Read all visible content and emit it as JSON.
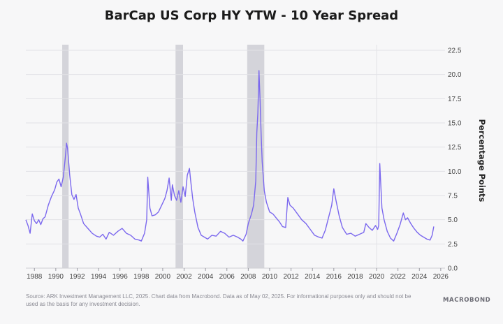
{
  "chart_data": {
    "type": "line",
    "title": "BarCap US Corp HY YTW - 10 Year Spread",
    "ylabel": "Percentage Points",
    "xlim": [
      1987.2,
      2026.4
    ],
    "ylim": [
      0,
      22.5
    ],
    "y_ticks": [
      "0.0",
      "2.5",
      "5.0",
      "7.5",
      "10.0",
      "12.5",
      "15.0",
      "17.5",
      "20.0",
      "22.5"
    ],
    "y_tick_values": [
      0,
      2.5,
      5,
      7.5,
      10,
      12.5,
      15,
      17.5,
      20,
      22.5
    ],
    "x_ticks": [
      "1988",
      "1990",
      "1992",
      "1994",
      "1996",
      "1998",
      "2000",
      "2002",
      "2004",
      "2006",
      "2008",
      "2010",
      "2012",
      "2014",
      "2016",
      "2018",
      "2020",
      "2022",
      "2024",
      "2026"
    ],
    "x_tick_values": [
      1988,
      1990,
      1992,
      1994,
      1996,
      1998,
      2000,
      2002,
      2004,
      2006,
      2008,
      2010,
      2012,
      2014,
      2016,
      2018,
      2020,
      2022,
      2024,
      2026
    ],
    "grid": "horizontal",
    "recession_bands": [
      [
        1990.6,
        1991.2
      ],
      [
        2001.2,
        2001.9
      ],
      [
        2007.9,
        2009.5
      ]
    ],
    "line_color": "#7b68ee",
    "band_color": "#d4d4da",
    "series": [
      {
        "x": [
          1987.2,
          1987.4,
          1987.6,
          1987.8,
          1988.0,
          1988.2,
          1988.4,
          1988.6,
          1988.8,
          1989.0,
          1989.3,
          1989.6,
          1989.9,
          1990.1,
          1990.3,
          1990.5,
          1990.7,
          1990.9,
          1991.0,
          1991.1,
          1991.3,
          1991.5,
          1991.7,
          1991.9,
          1992.1,
          1992.3,
          1992.6,
          1993.0,
          1993.4,
          1993.8,
          1994.1,
          1994.4,
          1994.7,
          1995.0,
          1995.4,
          1995.8,
          1996.2,
          1996.6,
          1997.0,
          1997.4,
          1997.8,
          1998.0,
          1998.3,
          1998.5,
          1998.6,
          1998.8,
          1999.0,
          1999.3,
          1999.6,
          1999.9,
          2000.2,
          2000.4,
          2000.6,
          2000.8,
          2000.9,
          2001.1,
          2001.3,
          2001.5,
          2001.7,
          2001.9,
          2002.1,
          2002.3,
          2002.5,
          2002.6,
          2002.8,
          2003.0,
          2003.3,
          2003.6,
          2003.9,
          2004.2,
          2004.6,
          2005.0,
          2005.4,
          2005.8,
          2006.2,
          2006.6,
          2007.0,
          2007.3,
          2007.5,
          2007.8,
          2008.0,
          2008.3,
          2008.5,
          2008.7,
          2008.8,
          2008.9,
          2009.0,
          2009.1,
          2009.2,
          2009.3,
          2009.5,
          2009.7,
          2010.0,
          2010.3,
          2010.6,
          2010.9,
          2011.2,
          2011.5,
          2011.7,
          2011.9,
          2012.2,
          2012.6,
          2013.0,
          2013.4,
          2013.8,
          2014.2,
          2014.6,
          2014.9,
          2015.2,
          2015.5,
          2015.8,
          2016.0,
          2016.2,
          2016.5,
          2016.8,
          2017.2,
          2017.6,
          2018.0,
          2018.4,
          2018.8,
          2019.0,
          2019.3,
          2019.6,
          2019.9,
          2020.1,
          2020.2,
          2020.3,
          2020.5,
          2020.7,
          2021.0,
          2021.3,
          2021.6,
          2021.9,
          2022.2,
          2022.5,
          2022.7,
          2022.9,
          2023.2,
          2023.5,
          2023.8,
          2024.1,
          2024.4,
          2024.7,
          2025.0,
          2025.2,
          2025.35
        ],
        "values": [
          5.0,
          4.4,
          3.6,
          5.6,
          4.9,
          4.6,
          5.0,
          4.5,
          5.1,
          5.3,
          6.5,
          7.4,
          8.1,
          8.9,
          9.2,
          8.4,
          9.4,
          11.5,
          12.9,
          12.4,
          9.6,
          7.6,
          7.1,
          7.6,
          6.2,
          5.6,
          4.6,
          4.1,
          3.6,
          3.3,
          3.2,
          3.5,
          3.0,
          3.7,
          3.4,
          3.8,
          4.1,
          3.6,
          3.4,
          3.0,
          2.9,
          2.8,
          3.6,
          5.0,
          9.4,
          6.2,
          5.4,
          5.5,
          5.8,
          6.5,
          7.2,
          8.0,
          9.3,
          7.0,
          8.6,
          7.5,
          7.0,
          8.0,
          6.8,
          8.4,
          7.4,
          9.6,
          10.3,
          9.2,
          7.2,
          5.8,
          4.2,
          3.4,
          3.2,
          3.0,
          3.4,
          3.3,
          3.8,
          3.6,
          3.2,
          3.4,
          3.2,
          3.0,
          2.8,
          3.5,
          4.6,
          5.6,
          6.5,
          9.0,
          14.0,
          16.0,
          20.4,
          17.5,
          14.0,
          11.0,
          8.0,
          6.8,
          5.8,
          5.6,
          5.2,
          4.8,
          4.3,
          4.2,
          7.3,
          6.5,
          6.2,
          5.6,
          5.0,
          4.6,
          4.0,
          3.4,
          3.2,
          3.1,
          3.9,
          5.2,
          6.5,
          8.2,
          7.0,
          5.4,
          4.2,
          3.5,
          3.6,
          3.3,
          3.5,
          3.7,
          4.6,
          4.2,
          3.9,
          4.4,
          4.0,
          4.4,
          10.8,
          6.2,
          5.0,
          3.8,
          3.1,
          2.8,
          3.6,
          4.5,
          5.7,
          5.0,
          5.2,
          4.6,
          4.1,
          3.7,
          3.4,
          3.2,
          3.0,
          2.9,
          3.4,
          4.3
        ]
      }
    ]
  },
  "footer": {
    "source": "Source: ARK Investment Management LLC, 2025. Chart data from Macrobond. Data as of May 02, 2025. For informational purposes only and should not be used as the basis for any investment decision.",
    "brand": "MACROBOND"
  }
}
